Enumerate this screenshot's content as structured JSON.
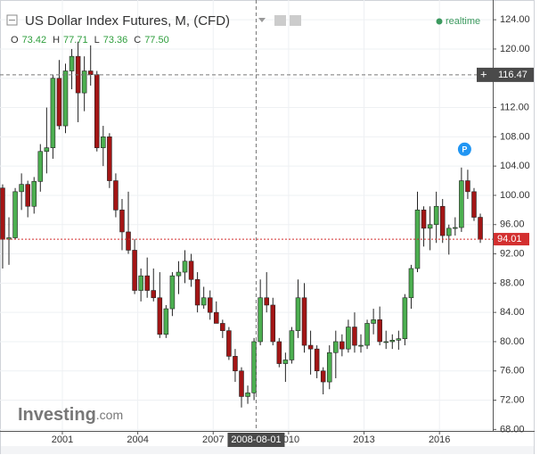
{
  "chart_data": {
    "type": "candlestick",
    "title": "US Dollar Index Futures, M, (CFD)",
    "status": "realtime",
    "legend_values": [
      {
        "key": "O",
        "text": "73.42"
      },
      {
        "key": "H",
        "text": "77.71"
      },
      {
        "key": "L",
        "text": "73.36"
      },
      {
        "key": "C",
        "text": "77.50"
      }
    ],
    "brand": {
      "name": "Investing",
      "suffix": ".com"
    },
    "marker_label": "P",
    "marker": {
      "x": 2017.0,
      "y": 106.3
    },
    "crosshair": {
      "price": 116.47,
      "date": "2008-08-01"
    },
    "last_price": 94.01,
    "up_color": "#4caf50",
    "down_color": "#a31515",
    "wick_color": "#222222",
    "x": [
      1998.5,
      1998.75,
      1999,
      1999.25,
      1999.5,
      1999.75,
      2000,
      2000.25,
      2000.5,
      2000.75,
      2001,
      2001.25,
      2001.5,
      2001.75,
      2002,
      2002.25,
      2002.5,
      2002.75,
      2003,
      2003.25,
      2003.5,
      2003.75,
      2004,
      2004.25,
      2004.5,
      2004.75,
      2005,
      2005.25,
      2005.5,
      2005.75,
      2006,
      2006.25,
      2006.5,
      2006.75,
      2007,
      2007.25,
      2007.5,
      2007.75,
      2008,
      2008.25,
      2008.5,
      2008.75,
      2009,
      2009.25,
      2009.5,
      2009.75,
      2010,
      2010.25,
      2010.5,
      2010.75,
      2011,
      2011.25,
      2011.5,
      2011.75,
      2012,
      2012.25,
      2012.5,
      2012.75,
      2013,
      2013.25,
      2013.5,
      2013.75,
      2014,
      2014.25,
      2014.5,
      2014.75,
      2015,
      2015.25,
      2015.5,
      2015.75,
      2016,
      2016.25,
      2016.5,
      2016.75,
      2017,
      2017.25,
      2017.5
    ],
    "candles": [
      [
        101,
        101.5,
        90,
        94
      ],
      [
        94,
        97,
        90.5,
        94.2
      ],
      [
        94.2,
        101,
        94,
        100.5
      ],
      [
        100.5,
        103,
        98,
        101.5
      ],
      [
        101.5,
        102,
        97,
        98.5
      ],
      [
        98.5,
        102.5,
        97.5,
        101.9
      ],
      [
        101.9,
        107,
        100.5,
        106
      ],
      [
        106,
        112,
        103,
        106.5
      ],
      [
        106.5,
        116.5,
        105,
        116
      ],
      [
        116,
        118.5,
        109,
        109.5
      ],
      [
        109.5,
        118,
        108.5,
        117
      ],
      [
        117,
        120,
        114.5,
        119
      ],
      [
        119,
        121,
        110,
        114
      ],
      [
        114,
        119,
        111.5,
        117
      ],
      [
        117,
        120.5,
        115,
        116.5
      ],
      [
        116.5,
        117,
        106,
        106.5
      ],
      [
        106.5,
        109.5,
        104,
        108
      ],
      [
        108,
        108.5,
        101,
        102
      ],
      [
        102,
        103,
        97,
        98
      ],
      [
        98,
        99.5,
        92.5,
        95
      ],
      [
        95,
        100.5,
        92,
        92.5
      ],
      [
        92.5,
        94,
        86.5,
        87
      ],
      [
        87,
        90,
        85.5,
        89
      ],
      [
        89,
        91.5,
        86,
        87
      ],
      [
        87,
        90,
        85.5,
        86
      ],
      [
        86,
        89.5,
        80.5,
        81
      ],
      [
        81,
        85,
        80.5,
        84.5
      ],
      [
        84.5,
        89.5,
        83.5,
        89
      ],
      [
        89,
        91,
        86.5,
        89.5
      ],
      [
        89.5,
        92.5,
        88,
        91
      ],
      [
        91,
        92,
        87.5,
        88.5
      ],
      [
        88.5,
        89.5,
        84,
        85
      ],
      [
        85,
        87.5,
        84.5,
        86
      ],
      [
        86,
        87,
        83,
        84
      ],
      [
        84,
        85.5,
        82.5,
        82.5
      ],
      [
        82.5,
        83,
        80.5,
        81.5
      ],
      [
        81.5,
        82,
        77.5,
        78
      ],
      [
        78,
        79,
        74.5,
        76
      ],
      [
        76,
        76.5,
        71,
        72.5
      ],
      [
        72.5,
        74,
        71.5,
        73
      ],
      [
        73,
        80.5,
        72,
        80
      ],
      [
        80,
        88.5,
        79.5,
        86
      ],
      [
        86,
        89.5,
        84,
        85
      ],
      [
        85,
        86,
        79.5,
        80
      ],
      [
        80,
        80.5,
        76.5,
        77
      ],
      [
        77,
        78.5,
        74.5,
        77.5
      ],
      [
        77.5,
        82,
        77,
        81.5
      ],
      [
        81.5,
        88.5,
        80.5,
        86
      ],
      [
        86,
        88,
        78.5,
        79.5
      ],
      [
        79.5,
        81.5,
        75.5,
        79
      ],
      [
        79,
        79.5,
        75,
        76
      ],
      [
        76,
        76.5,
        72.8,
        74.5
      ],
      [
        74.5,
        79.5,
        73.5,
        78.5
      ],
      [
        78.5,
        81.5,
        75,
        80
      ],
      [
        80,
        81,
        78,
        79
      ],
      [
        79,
        83,
        78.5,
        82
      ],
      [
        82,
        84,
        78.5,
        79.5
      ],
      [
        79.5,
        81,
        78.5,
        79.5
      ],
      [
        79.5,
        83,
        79,
        82.5
      ],
      [
        82.5,
        84.5,
        81,
        83
      ],
      [
        83,
        84.8,
        79.5,
        80
      ],
      [
        80,
        81.5,
        79,
        80
      ],
      [
        80,
        81,
        79,
        80.2
      ],
      [
        80.2,
        81.5,
        78.9,
        80.4
      ],
      [
        80.4,
        86.5,
        79.5,
        86
      ],
      [
        86,
        90.5,
        84.5,
        90
      ],
      [
        90,
        100.5,
        89.5,
        98
      ],
      [
        98,
        98.5,
        93,
        95.5
      ],
      [
        95.5,
        98.5,
        92.5,
        96
      ],
      [
        96,
        100.5,
        93.5,
        98.5
      ],
      [
        98.5,
        99.5,
        93.5,
        94.5
      ],
      [
        94.5,
        96,
        91.9,
        95.5
      ],
      [
        95.5,
        97,
        94.5,
        95.6
      ],
      [
        95.6,
        103.8,
        95,
        102
      ],
      [
        102,
        103.5,
        99.5,
        100.5
      ],
      [
        100.5,
        101,
        96.5,
        97
      ],
      [
        97,
        97.5,
        93.5,
        94.01
      ]
    ],
    "xlim": [
      1998.52,
      2018.12
    ],
    "ylim": [
      67.8,
      126.7
    ],
    "xticks": [
      2001,
      2004,
      2007,
      2010,
      2013,
      2016
    ],
    "yticks": [
      {
        "value": 68,
        "label": "68.00"
      },
      {
        "value": 72,
        "label": "72.00"
      },
      {
        "value": 76,
        "label": "76.00"
      },
      {
        "value": 80,
        "label": "80.00"
      },
      {
        "value": 84,
        "label": "84.00"
      },
      {
        "value": 88,
        "label": "88.00"
      },
      {
        "value": 92,
        "label": "92.00"
      },
      {
        "value": 96,
        "label": "96.00"
      },
      {
        "value": 100,
        "label": "100.00"
      },
      {
        "value": 104,
        "label": "104.00"
      },
      {
        "value": 108,
        "label": "108.00"
      },
      {
        "value": 112,
        "label": "112.00"
      },
      {
        "value": 116,
        "label": "116.00"
      },
      {
        "value": 120,
        "label": "120.00"
      },
      {
        "value": 124,
        "label": "124.00"
      }
    ],
    "grid": true
  }
}
